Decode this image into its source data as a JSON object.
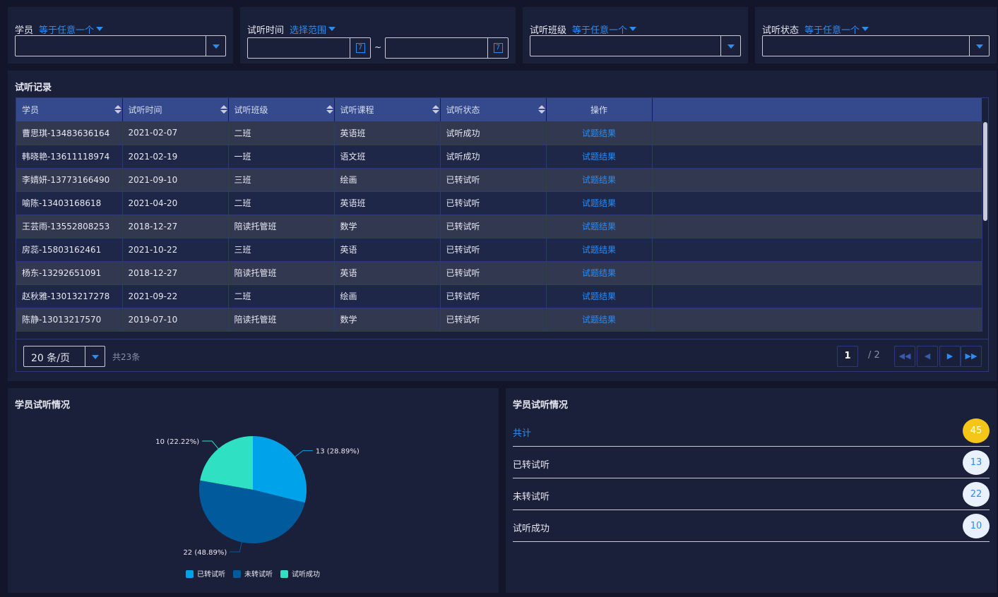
{
  "filters": [
    {
      "label": "学员",
      "operator": "等于任意一个"
    },
    {
      "label": "试听时间",
      "operator": "选择范围",
      "range_sep": "~"
    },
    {
      "label": "试听班级",
      "operator": "等于任意一个"
    },
    {
      "label": "试听状态",
      "operator": "等于任意一个"
    }
  ],
  "records": {
    "title": "试听记录",
    "columns": [
      "学员",
      "试听时间",
      "试听班级",
      "试听课程",
      "试听状态",
      "操作"
    ],
    "rows": [
      [
        "曹思琪-13483636164",
        "2021-02-07",
        "二班",
        "英语班",
        "试听成功",
        "试题结果"
      ],
      [
        "韩晓艳-13611118974",
        "2021-02-19",
        "一班",
        "语文班",
        "试听成功",
        "试题结果"
      ],
      [
        "李婧妍-13773166490",
        "2021-09-10",
        "三班",
        "绘画",
        "已转试听",
        "试题结果"
      ],
      [
        "喻陈-13403168618",
        "2021-04-20",
        "二班",
        "英语班",
        "已转试听",
        "试题结果"
      ],
      [
        "王芸雨-13552808253",
        "2018-12-27",
        "陪读托管班",
        "数学",
        "已转试听",
        "试题结果"
      ],
      [
        "房蕊-15803162461",
        "2021-10-22",
        "三班",
        "英语",
        "已转试听",
        "试题结果"
      ],
      [
        "杨东-13292651091",
        "2018-12-27",
        "陪读托管班",
        "英语",
        "已转试听",
        "试题结果"
      ],
      [
        "赵秋雅-13013217278",
        "2021-09-22",
        "二班",
        "绘画",
        "已转试听",
        "试题结果"
      ],
      [
        "陈静-13013217570",
        "2019-07-10",
        "陪读托管班",
        "数学",
        "已转试听",
        "试题结果"
      ]
    ],
    "page_size": "20 条/页",
    "total": "共23条",
    "current_page": "1",
    "total_pages": "/ 2"
  },
  "pie_panel": {
    "title": "学员试听情况"
  },
  "chart_data": {
    "type": "pie",
    "categories": [
      "已转试听",
      "未转试听",
      "试听成功"
    ],
    "values": [
      13,
      22,
      10
    ],
    "labels": [
      "13 (28.89%)",
      "22 (48.89%)",
      "10 (22.22%)"
    ],
    "colors": [
      "#00a2ea",
      "#005a9c",
      "#2fe0c3"
    ],
    "legend": "bottom"
  },
  "stats": {
    "title": "学员试听情况",
    "items": [
      {
        "label": "共计",
        "value": "45"
      },
      {
        "label": "已转试听",
        "value": "13"
      },
      {
        "label": "未转试听",
        "value": "22"
      },
      {
        "label": "试听成功",
        "value": "10"
      }
    ],
    "highlight_color": "#f5c518"
  }
}
